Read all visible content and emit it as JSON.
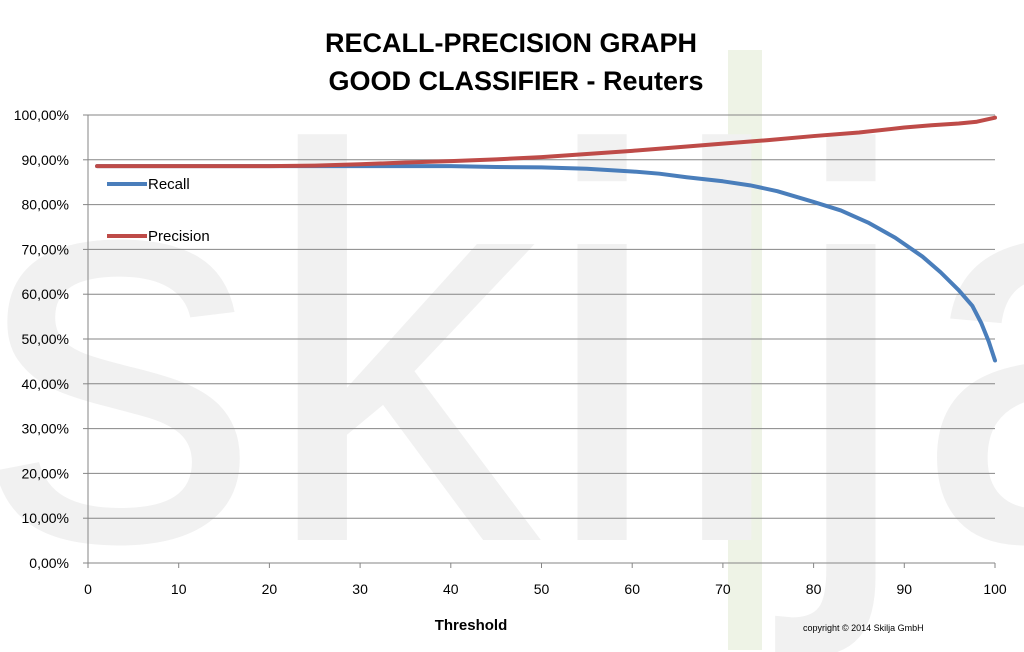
{
  "watermark": "skilja",
  "copyright": "copyright ©  2014 Skilja GmbH",
  "colors": {
    "recall": "#4a7ebb",
    "precision": "#be4b48",
    "grid": "#868686",
    "axis": "#868686"
  },
  "chart_data": {
    "type": "line",
    "title": "RECALL-PRECISION GRAPH",
    "subtitle": "GOOD CLASSIFIER - Reuters",
    "xlabel": "Threshold",
    "ylabel": "",
    "xlim": [
      0,
      100
    ],
    "ylim": [
      0,
      100
    ],
    "x_ticks": [
      0,
      10,
      20,
      30,
      40,
      50,
      60,
      70,
      80,
      90,
      100
    ],
    "y_ticks": [
      0,
      10,
      20,
      30,
      40,
      50,
      60,
      70,
      80,
      90,
      100
    ],
    "y_tick_labels": [
      "0,00%",
      "10,00%",
      "20,00%",
      "30,00%",
      "40,00%",
      "50,00%",
      "60,00%",
      "70,00%",
      "80,00%",
      "90,00%",
      "100,00%"
    ],
    "grid": true,
    "legend_position": "top-left",
    "series": [
      {
        "name": "Recall",
        "color": "#4a7ebb",
        "x": [
          1,
          10,
          20,
          30,
          35,
          40,
          45,
          50,
          55,
          60,
          63,
          66,
          70,
          73,
          76,
          80,
          83,
          86,
          89,
          92,
          94,
          96,
          97.5,
          98.5,
          99.3,
          100
        ],
        "y": [
          88.6,
          88.6,
          88.6,
          88.6,
          88.6,
          88.6,
          88.4,
          88.3,
          88.0,
          87.4,
          86.9,
          86.1,
          85.2,
          84.3,
          83.0,
          80.6,
          78.7,
          76.0,
          72.6,
          68.4,
          64.9,
          60.9,
          57.4,
          53.5,
          49.5,
          45.2
        ]
      },
      {
        "name": "Precision",
        "color": "#be4b48",
        "x": [
          1,
          10,
          20,
          25,
          30,
          35,
          40,
          45,
          50,
          55,
          60,
          65,
          70,
          75,
          80,
          85,
          90,
          93,
          96,
          98,
          100
        ],
        "y": [
          88.6,
          88.6,
          88.6,
          88.7,
          89.0,
          89.4,
          89.7,
          90.1,
          90.6,
          91.3,
          92.0,
          92.8,
          93.6,
          94.4,
          95.3,
          96.1,
          97.2,
          97.7,
          98.1,
          98.5,
          99.4
        ]
      }
    ]
  }
}
